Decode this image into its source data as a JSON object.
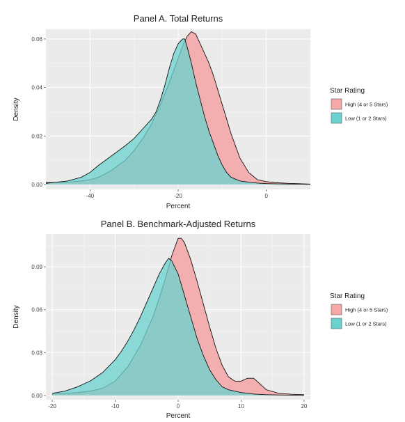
{
  "chart_data": [
    {
      "type": "area",
      "title": "Panel A. Total Returns",
      "xlabel": "Percent",
      "ylabel": "Density",
      "xlim": [
        -50,
        10
      ],
      "ylim": [
        -0.002,
        0.064
      ],
      "x_ticks": [
        -40,
        -20,
        0
      ],
      "x_tick_labels": [
        "-40",
        "-20",
        "0"
      ],
      "y_ticks": [
        0,
        0.02,
        0.04,
        0.06
      ],
      "y_tick_labels": [
        "0.00",
        "0.02",
        "0.04",
        "0.06"
      ],
      "grid": true,
      "legend": {
        "title": "Star Rating",
        "placement": "right",
        "entries": [
          "High (4 or 5 Stars)",
          "Low (1 or 2 Stars)"
        ]
      },
      "series": [
        {
          "name": "High (4 or 5 Stars)",
          "color": "#f4a8a8",
          "x": [
            -50,
            -45,
            -42,
            -40,
            -38,
            -35,
            -32,
            -30,
            -28,
            -26,
            -24,
            -22,
            -20,
            -19,
            -18,
            -17,
            -16,
            -15,
            -14,
            -13,
            -12,
            -11,
            -10,
            -9,
            -8,
            -6,
            -4,
            -2,
            0,
            2,
            5,
            10
          ],
          "y": [
            0.0008,
            0.001,
            0.0015,
            0.002,
            0.003,
            0.006,
            0.01,
            0.014,
            0.019,
            0.025,
            0.033,
            0.042,
            0.052,
            0.057,
            0.061,
            0.063,
            0.062,
            0.058,
            0.054,
            0.05,
            0.045,
            0.039,
            0.033,
            0.027,
            0.021,
            0.011,
            0.005,
            0.002,
            0.0012,
            0.0008,
            0.0005,
            0.0002
          ]
        },
        {
          "name": "Low (1 or 2 Stars)",
          "color": "#6ad3d0",
          "x": [
            -50,
            -45,
            -42,
            -40,
            -38,
            -35,
            -32,
            -30,
            -28,
            -26,
            -25,
            -24,
            -23,
            -22,
            -21,
            -20,
            -19,
            -18.5,
            -18,
            -17,
            -16,
            -15,
            -14,
            -13,
            -12,
            -11,
            -10,
            -9,
            -8,
            -6,
            -4,
            -2,
            0,
            2,
            5,
            10
          ],
          "y": [
            0.0005,
            0.0015,
            0.003,
            0.005,
            0.008,
            0.012,
            0.016,
            0.019,
            0.023,
            0.027,
            0.03,
            0.035,
            0.041,
            0.048,
            0.054,
            0.058,
            0.06,
            0.06,
            0.057,
            0.05,
            0.042,
            0.035,
            0.028,
            0.022,
            0.017,
            0.012,
            0.008,
            0.005,
            0.003,
            0.0015,
            0.001,
            0.0006,
            0.0004,
            0.0003,
            0.0002,
            0.0001
          ]
        }
      ]
    },
    {
      "type": "area",
      "title": "Panel B. Benchmark-Adjusted Returns",
      "xlabel": "Percent",
      "ylabel": "Density",
      "xlim": [
        -21,
        21
      ],
      "ylim": [
        -0.003,
        0.113
      ],
      "x_ticks": [
        -20,
        -10,
        0,
        10,
        20
      ],
      "x_tick_labels": [
        "-20",
        "-10",
        "0",
        "10",
        "20"
      ],
      "y_ticks": [
        0,
        0.03,
        0.06,
        0.09
      ],
      "y_tick_labels": [
        "0.00",
        "0.03",
        "0.06",
        "0.09"
      ],
      "grid": true,
      "legend": {
        "title": "Star Rating",
        "placement": "right",
        "entries": [
          "High (4 or 5 Stars)",
          "Low (1 or 2 Stars)"
        ]
      },
      "series": [
        {
          "name": "High (4 or 5 Stars)",
          "color": "#f4a8a8",
          "x": [
            -20,
            -18,
            -16,
            -14,
            -12,
            -10,
            -8,
            -6,
            -5,
            -4,
            -3,
            -2,
            -1,
            0,
            0.5,
            1,
            2,
            3,
            4,
            5,
            6,
            7,
            8,
            9,
            10,
            11,
            12,
            13,
            14,
            16,
            18,
            20
          ],
          "y": [
            0.001,
            0.0015,
            0.002,
            0.003,
            0.005,
            0.01,
            0.02,
            0.035,
            0.045,
            0.055,
            0.068,
            0.082,
            0.098,
            0.11,
            0.11,
            0.107,
            0.095,
            0.08,
            0.064,
            0.048,
            0.033,
            0.021,
            0.013,
            0.01,
            0.01,
            0.012,
            0.012,
            0.008,
            0.004,
            0.0015,
            0.0008,
            0.0005
          ]
        },
        {
          "name": "Low (1 or 2 Stars)",
          "color": "#6ad3d0",
          "x": [
            -20,
            -18,
            -16,
            -14,
            -12,
            -10,
            -9,
            -8,
            -7,
            -6,
            -5,
            -4,
            -3,
            -2,
            -1.5,
            -1,
            0,
            1,
            2,
            3,
            4,
            5,
            6,
            7,
            8,
            10,
            12,
            14,
            16,
            18,
            20
          ],
          "y": [
            0.0015,
            0.003,
            0.006,
            0.01,
            0.016,
            0.025,
            0.031,
            0.038,
            0.046,
            0.055,
            0.065,
            0.075,
            0.085,
            0.093,
            0.096,
            0.094,
            0.085,
            0.07,
            0.055,
            0.04,
            0.028,
            0.018,
            0.011,
            0.006,
            0.004,
            0.002,
            0.001,
            0.0005,
            0.0003,
            0.0002,
            0.0001
          ]
        }
      ]
    }
  ]
}
